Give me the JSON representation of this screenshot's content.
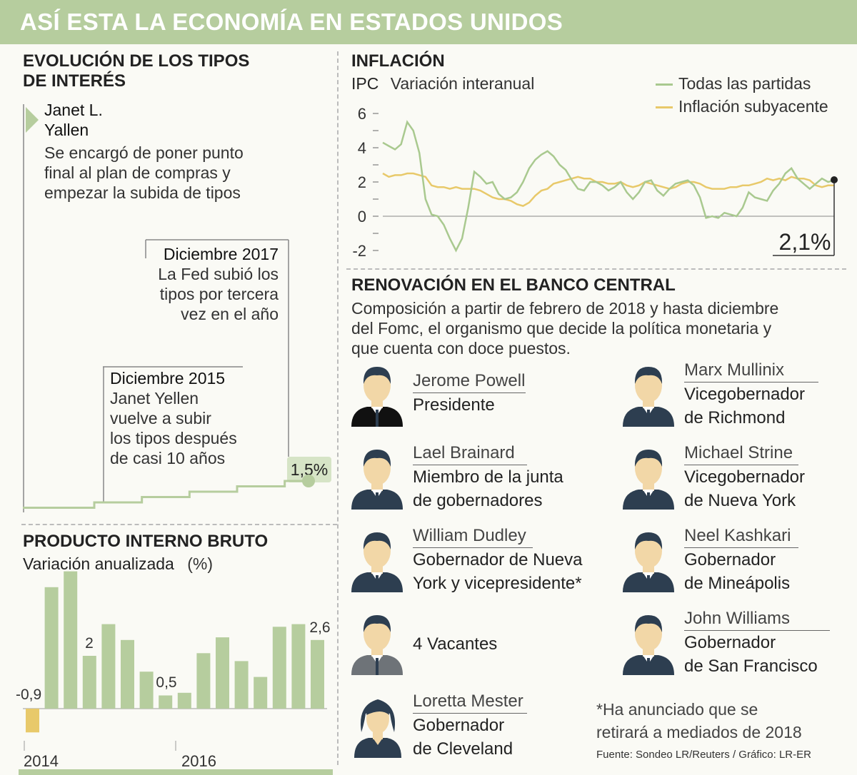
{
  "title": "ASÍ ESTA LA ECONOMÍA EN ESTADOS UNIDOS",
  "rates": {
    "heading_1": "EVOLUCIÓN DE LOS TIPOS",
    "heading_2": "DE INTERÉS",
    "yellen_name_1": "Janet L.",
    "yellen_name_2": "Yallen",
    "yellen_text_1": "Se encargó de poner punto",
    "yellen_text_2": "final al plan de compras y",
    "yellen_text_3": "empezar la subida de tipos",
    "dec2017_title": "Diciembre 2017",
    "dec2017_1": "La Fed subió los",
    "dec2017_2": "tipos por tercera",
    "dec2017_3": "vez en el año",
    "dec2015_title": "Diciembre 2015",
    "dec2015_1": "Janet Yellen",
    "dec2015_2": "vuelve a subir",
    "dec2015_3": "los tipos después",
    "dec2015_4": "de casi 10 años",
    "final_label": "1,5%"
  },
  "gdp": {
    "heading": "PRODUCTO INTERNO BRUTO",
    "subtitle": "Variación anualizada",
    "unit": "(%)",
    "label_neg": "-0,9",
    "label_2": "2",
    "label_05": "0,5",
    "label_26": "2,6",
    "year_2014": "2014",
    "year_2016": "2016"
  },
  "inflation": {
    "heading": "INFLACIÓN",
    "ipc": "IPC",
    "subtitle": "Variación interanual",
    "legend_all": "Todas las partidas",
    "legend_core": "Inflación subyacente",
    "y_6": "6",
    "y_4": "4",
    "y_2": "2",
    "y_0": "0",
    "y_m2": "-2",
    "last_value": "2,1%"
  },
  "board": {
    "heading": "RENOVACIÓN EN EL BANCO CENTRAL",
    "desc_1": "Composición a partir de febrero de 2018 y hasta diciembre",
    "desc_2": "del Fomc, el organismo que decide la política monetaria y",
    "desc_3": "que cuenta con doce puestos.",
    "members": [
      {
        "name": "Jerome Powell",
        "role_1": "Presidente",
        "role_2": ""
      },
      {
        "name": "Marx Mullinix",
        "role_1": "Vicegobernador",
        "role_2": "de Richmond"
      },
      {
        "name": "Lael Brainard",
        "role_1": "Miembro de la junta",
        "role_2": "de gobernadores"
      },
      {
        "name": "Michael Strine",
        "role_1": "Vicegobernador",
        "role_2": "de Nueva York"
      },
      {
        "name": "William Dudley",
        "role_1": "Gobernador de Nueva",
        "role_2": "York y vicepresidente*"
      },
      {
        "name": "Neel Kashkari",
        "role_1": "Gobernador",
        "role_2": "de Mineápolis"
      },
      {
        "name": "",
        "role_1": "4 Vacantes",
        "role_2": ""
      },
      {
        "name": "John Williams",
        "role_1": "Gobernador",
        "role_2": "de San Francisco"
      },
      {
        "name": "Loretta Mester",
        "role_1": "Gobernador",
        "role_2": "de Cleveland"
      }
    ],
    "footnote_1": "*Ha anunciado que se",
    "footnote_2": "retirará a mediados de 2018",
    "source": "Fuente:  Sondeo LR/Reuters / Gráfico: LR-ER"
  },
  "colors": {
    "green": "#b6cd9e",
    "line_green": "#a9c98f",
    "yellow": "#e8c96a",
    "dark": "#2d3e50",
    "skin": "#f2d7a7"
  },
  "chart_data": [
    {
      "type": "line",
      "title": "EVOLUCIÓN DE LOS TIPOS DE INTERÉS",
      "series": [
        {
          "values": [
            0.25,
            0.25,
            0.25,
            0.5,
            0.5,
            0.75,
            0.75,
            1.0,
            1.0,
            1.25,
            1.25,
            1.5,
            1.5
          ]
        }
      ],
      "final_value_label": "1,5%"
    },
    {
      "type": "bar",
      "title": "PRODUCTO INTERNO BRUTO",
      "ylabel": "Variación anualizada (%)",
      "x_labels": [
        "2014",
        "2016"
      ],
      "values": [
        -0.9,
        4.6,
        5.2,
        2.0,
        3.2,
        2.6,
        1.4,
        0.5,
        0.6,
        2.1,
        2.7,
        1.8,
        1.2,
        3.1,
        3.2,
        2.6
      ]
    },
    {
      "type": "line",
      "title": "INFLACIÓN",
      "ylabel": "IPC Variación interanual",
      "ylim": [
        -2,
        6
      ],
      "yticks": [
        6,
        4,
        2,
        0,
        -2
      ],
      "series": [
        {
          "name": "Todas las partidas",
          "values": [
            4.3,
            4.1,
            3.9,
            4.2,
            5.5,
            5.0,
            3.7,
            1.0,
            0.1,
            0.0,
            -0.5,
            -1.3,
            -2.0,
            -1.3,
            0.5,
            2.6,
            2.3,
            1.9,
            2.0,
            1.3,
            1.0,
            1.1,
            1.4,
            2.0,
            2.8,
            3.3,
            3.6,
            3.8,
            3.5,
            3.0,
            2.7,
            2.1,
            1.6,
            1.5,
            2.0,
            2.0,
            1.8,
            1.5,
            1.7,
            2.0,
            1.4,
            1.0,
            1.4,
            2.0,
            2.1,
            1.5,
            1.2,
            1.6,
            1.9,
            2.0,
            2.1,
            1.8,
            1.1,
            -0.1,
            0.0,
            -0.1,
            0.2,
            0.1,
            0.0,
            0.5,
            1.4,
            1.1,
            1.0,
            0.9,
            1.5,
            1.9,
            2.5,
            2.8,
            2.2,
            1.9,
            1.6,
            1.9,
            2.2,
            2.0,
            2.1
          ]
        },
        {
          "name": "Inflación subyacente",
          "values": [
            2.5,
            2.3,
            2.4,
            2.4,
            2.5,
            2.5,
            2.4,
            2.3,
            1.8,
            1.7,
            1.7,
            1.6,
            1.7,
            1.6,
            1.6,
            1.6,
            1.5,
            1.3,
            1.1,
            1.0,
            1.0,
            0.9,
            0.7,
            0.6,
            0.8,
            1.2,
            1.5,
            1.6,
            1.9,
            2.0,
            2.1,
            2.2,
            2.3,
            2.2,
            2.2,
            2.0,
            2.0,
            1.9,
            1.9,
            2.0,
            1.8,
            1.7,
            1.8,
            2.0,
            1.9,
            1.8,
            1.7,
            1.6,
            1.7,
            1.9,
            2.0,
            2.0,
            1.9,
            1.7,
            1.6,
            1.6,
            1.6,
            1.7,
            1.7,
            1.8,
            1.8,
            1.9,
            2.0,
            2.2,
            2.1,
            2.2,
            2.1,
            2.3,
            2.2,
            2.2,
            2.1,
            1.8,
            1.7,
            1.8,
            1.8
          ]
        }
      ],
      "last_value_label": "2,1%"
    }
  ]
}
